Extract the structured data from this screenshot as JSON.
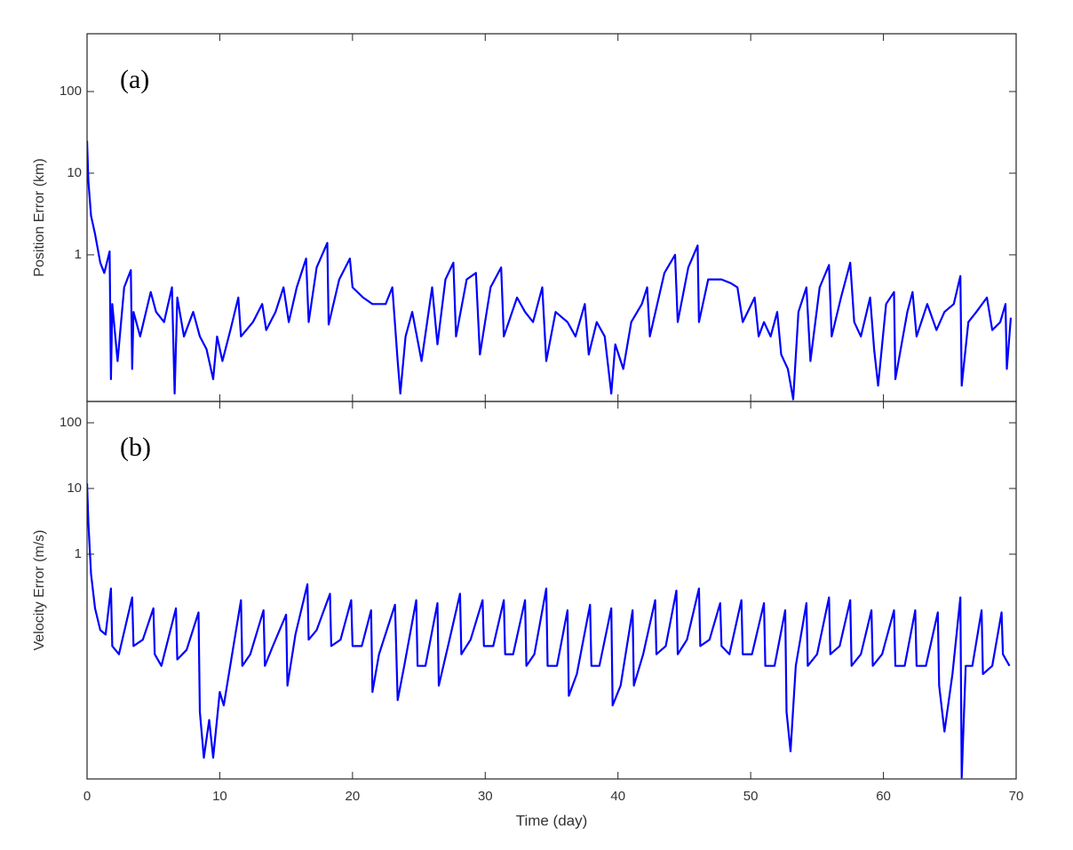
{
  "chart_data": [
    {
      "type": "line",
      "annotation": "(a)",
      "ylabel": "Position Error (km)",
      "yscale": "log",
      "xlim": [
        0,
        70
      ],
      "xticks": [
        0,
        10,
        20,
        30,
        40,
        50,
        60,
        70
      ],
      "ylim": [
        0.016,
        510
      ],
      "yticks": [
        1,
        10,
        100
      ],
      "series": [
        {
          "color": "#0000ff",
          "x": [
            0,
            0.1,
            0.3,
            0.6,
            1,
            1.3,
            1.7,
            1.8,
            1.9,
            2.3,
            2.8,
            3.3,
            3.4,
            3.5,
            4,
            4.8,
            5.2,
            5.8,
            6.4,
            6.6,
            6.8,
            7.3,
            8,
            8.5,
            9,
            9.5,
            9.8,
            10.2,
            10.8,
            11.4,
            11.6,
            12.5,
            13.2,
            13.5,
            14.2,
            14.8,
            15.2,
            15.8,
            16.5,
            16.7,
            17.3,
            18.1,
            18.2,
            19,
            19.8,
            20,
            20.8,
            21.5,
            22.5,
            23,
            23.4,
            23.6,
            24,
            24.5,
            25.2,
            26,
            26.4,
            27,
            27.6,
            27.8,
            28.6,
            29.3,
            29.6,
            30.4,
            31.2,
            31.4,
            32.4,
            33,
            33.6,
            34.3,
            34.6,
            35.3,
            36.2,
            36.8,
            37.5,
            37.8,
            38.4,
            39,
            39.5,
            39.8,
            40.4,
            41,
            41.8,
            42.2,
            42.4,
            43.5,
            44.3,
            44.5,
            45.3,
            46,
            46.1,
            46.8,
            47.8,
            48.5,
            49,
            49.4,
            50.3,
            50.6,
            51,
            51.5,
            52,
            52.3,
            52.8,
            53.2,
            53.6,
            54.2,
            54.5,
            55.2,
            55.9,
            56.1,
            56.8,
            57.5,
            57.8,
            58.3,
            59,
            59.3,
            59.6,
            60.2,
            60.8,
            60.9,
            61.8,
            62.2,
            62.5,
            63.3,
            64,
            64.6,
            65.3,
            65.8,
            65.9,
            66.4,
            67,
            67.8,
            68.2,
            68.8,
            69.2,
            69.3,
            69.6
          ],
          "values": [
            25,
            8,
            3,
            1.8,
            0.8,
            0.6,
            1.1,
            0.03,
            0.25,
            0.05,
            0.4,
            0.65,
            0.04,
            0.2,
            0.1,
            0.35,
            0.2,
            0.15,
            0.4,
            0.02,
            0.3,
            0.1,
            0.2,
            0.1,
            0.07,
            0.03,
            0.1,
            0.05,
            0.12,
            0.3,
            0.1,
            0.15,
            0.25,
            0.12,
            0.2,
            0.4,
            0.15,
            0.4,
            0.9,
            0.15,
            0.7,
            1.4,
            0.14,
            0.5,
            0.9,
            0.4,
            0.3,
            0.25,
            0.25,
            0.4,
            0.05,
            0.02,
            0.1,
            0.2,
            0.05,
            0.4,
            0.08,
            0.5,
            0.8,
            0.1,
            0.5,
            0.6,
            0.06,
            0.4,
            0.7,
            0.1,
            0.3,
            0.2,
            0.15,
            0.4,
            0.05,
            0.2,
            0.15,
            0.1,
            0.25,
            0.06,
            0.15,
            0.1,
            0.02,
            0.08,
            0.04,
            0.15,
            0.25,
            0.4,
            0.1,
            0.6,
            1.0,
            0.15,
            0.7,
            1.3,
            0.15,
            0.5,
            0.5,
            0.45,
            0.4,
            0.15,
            0.3,
            0.1,
            0.15,
            0.1,
            0.2,
            0.06,
            0.04,
            0.017,
            0.2,
            0.4,
            0.05,
            0.4,
            0.75,
            0.1,
            0.3,
            0.8,
            0.15,
            0.1,
            0.3,
            0.07,
            0.025,
            0.25,
            0.35,
            0.03,
            0.2,
            0.35,
            0.1,
            0.25,
            0.12,
            0.2,
            0.25,
            0.55,
            0.025,
            0.15,
            0.2,
            0.3,
            0.12,
            0.15,
            0.25,
            0.04,
            0.17
          ]
        }
      ]
    },
    {
      "type": "line",
      "annotation": "(b)",
      "ylabel": "Velocity Error (m/s)",
      "xlabel": "Time (day)",
      "yscale": "log",
      "xlim": [
        0,
        70
      ],
      "xticks": [
        0,
        10,
        20,
        30,
        40,
        50,
        60,
        70
      ],
      "ylim": [
        0.00038,
        211
      ],
      "yticks": [
        1,
        10,
        100
      ],
      "series": [
        {
          "color": "#0000ff",
          "x": [
            0,
            0.1,
            0.3,
            0.6,
            1,
            1.4,
            1.8,
            1.9,
            2.4,
            3.4,
            3.5,
            4.2,
            5,
            5.1,
            5.6,
            6.7,
            6.8,
            7.5,
            8.4,
            8.5,
            8.8,
            9.2,
            9.5,
            10,
            10.3,
            11.6,
            11.7,
            12.3,
            13.3,
            13.4,
            14,
            15,
            15.1,
            15.7,
            16.6,
            16.7,
            17.3,
            18.3,
            18.4,
            19.1,
            19.9,
            20,
            20.7,
            21.4,
            21.5,
            22,
            23.2,
            23.4,
            23.9,
            24.8,
            24.9,
            25.5,
            26.4,
            26.5,
            27.2,
            28.1,
            28.2,
            28.9,
            29.8,
            29.9,
            30.6,
            31.4,
            31.5,
            32.1,
            33,
            33.1,
            33.7,
            34.6,
            34.7,
            35.4,
            36.2,
            36.3,
            36.9,
            37.9,
            38,
            38.6,
            39.5,
            39.6,
            40.2,
            41.1,
            41.2,
            41.9,
            42.8,
            42.9,
            43.6,
            44.4,
            44.5,
            45.2,
            46.1,
            46.2,
            46.9,
            47.7,
            47.8,
            48.4,
            49.3,
            49.4,
            50.1,
            51,
            51.1,
            51.8,
            52.6,
            52.7,
            53,
            53.4,
            54.2,
            54.3,
            55,
            55.9,
            56,
            56.7,
            57.5,
            57.6,
            58.3,
            59.1,
            59.2,
            59.9,
            60.8,
            60.9,
            61.6,
            62.4,
            62.5,
            63.2,
            64.1,
            64.2,
            64.6,
            65.2,
            65.8,
            65.9,
            66.2,
            66.7,
            67.4,
            67.5,
            68.2,
            68.9,
            69,
            69.5
          ],
          "values": [
            12,
            3,
            0.5,
            0.15,
            0.07,
            0.06,
            0.3,
            0.04,
            0.03,
            0.22,
            0.04,
            0.05,
            0.15,
            0.03,
            0.02,
            0.15,
            0.025,
            0.035,
            0.13,
            0.004,
            0.0008,
            0.003,
            0.0008,
            0.008,
            0.005,
            0.2,
            0.02,
            0.03,
            0.14,
            0.02,
            0.04,
            0.12,
            0.01,
            0.06,
            0.35,
            0.05,
            0.07,
            0.25,
            0.04,
            0.05,
            0.2,
            0.04,
            0.04,
            0.14,
            0.008,
            0.03,
            0.17,
            0.006,
            0.02,
            0.2,
            0.02,
            0.02,
            0.18,
            0.01,
            0.04,
            0.25,
            0.03,
            0.05,
            0.2,
            0.04,
            0.04,
            0.2,
            0.03,
            0.03,
            0.2,
            0.02,
            0.03,
            0.3,
            0.02,
            0.02,
            0.14,
            0.007,
            0.015,
            0.17,
            0.02,
            0.02,
            0.15,
            0.005,
            0.01,
            0.14,
            0.01,
            0.03,
            0.2,
            0.03,
            0.04,
            0.28,
            0.03,
            0.05,
            0.3,
            0.04,
            0.05,
            0.18,
            0.04,
            0.03,
            0.2,
            0.03,
            0.03,
            0.18,
            0.02,
            0.02,
            0.14,
            0.004,
            0.001,
            0.02,
            0.18,
            0.02,
            0.03,
            0.22,
            0.03,
            0.04,
            0.2,
            0.02,
            0.03,
            0.14,
            0.02,
            0.03,
            0.14,
            0.02,
            0.02,
            0.14,
            0.02,
            0.02,
            0.13,
            0.01,
            0.002,
            0.015,
            0.22,
            0.0004,
            0.02,
            0.02,
            0.14,
            0.015,
            0.02,
            0.13,
            0.03,
            0.02
          ]
        }
      ]
    }
  ]
}
